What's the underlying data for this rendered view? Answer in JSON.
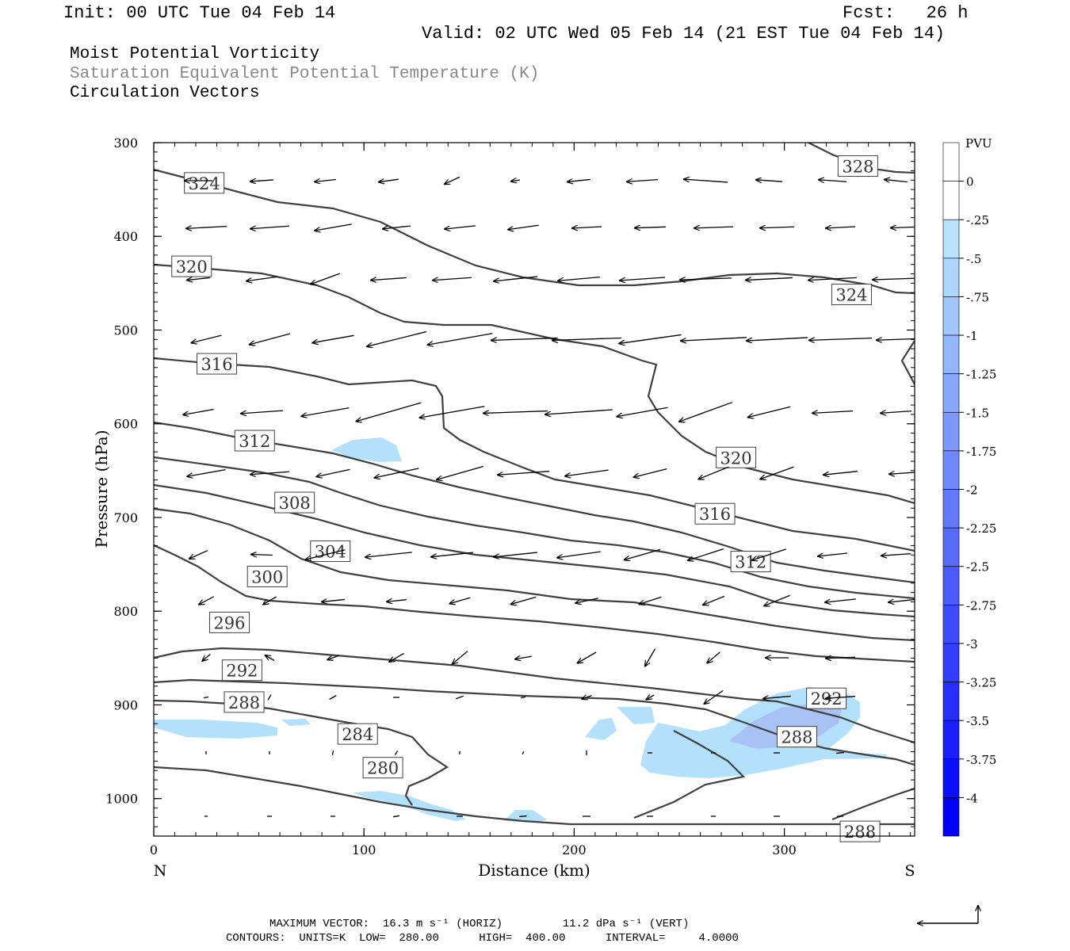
{
  "header": {
    "init": "Init: 00 UTC Tue 04 Feb 14",
    "fcst": "Fcst:   26 h",
    "valid": "Valid: 02 UTC Wed 05 Feb 14 (21 EST Tue 04 Feb 14)"
  },
  "titles": {
    "line1": "Moist Potential Vorticity",
    "line2": "Saturation Equivalent Potential Temperature (K)",
    "line3": "Circulation Vectors"
  },
  "colors": {
    "contour": "#404040",
    "mpv_light": "#b3e0fb",
    "mpv_medium": "#a8c2f5"
  },
  "chart_data": {
    "type": "contour",
    "xlabel": "Distance (km)",
    "ylabel": "Pressure (hPa)",
    "xlim": [
      0,
      362
    ],
    "ylim": [
      1040,
      300
    ],
    "x_ticks": [
      "0",
      "100",
      "200",
      "300"
    ],
    "y_ticks": [
      "300",
      "400",
      "500",
      "600",
      "700",
      "800",
      "900",
      "1000"
    ],
    "x_end_labels": {
      "left": "N",
      "right": "S"
    },
    "contour_labels": [
      {
        "v": "328",
        "x": 335,
        "p": 325
      },
      {
        "v": "324",
        "x": 24,
        "p": 343
      },
      {
        "v": "324",
        "x": 332,
        "p": 462
      },
      {
        "v": "320",
        "x": 18,
        "p": 432
      },
      {
        "v": "320",
        "x": 277,
        "p": 636
      },
      {
        "v": "316",
        "x": 30,
        "p": 536
      },
      {
        "v": "316",
        "x": 267,
        "p": 696
      },
      {
        "v": "312",
        "x": 48,
        "p": 618
      },
      {
        "v": "312",
        "x": 284,
        "p": 747
      },
      {
        "v": "308",
        "x": 67,
        "p": 684
      },
      {
        "v": "304",
        "x": 84,
        "p": 736
      },
      {
        "v": "300",
        "x": 54,
        "p": 763
      },
      {
        "v": "296",
        "x": 36,
        "p": 812
      },
      {
        "v": "292",
        "x": 42,
        "p": 863
      },
      {
        "v": "292",
        "x": 320,
        "p": 893
      },
      {
        "v": "288",
        "x": 43,
        "p": 897
      },
      {
        "v": "288",
        "x": 306,
        "p": 934
      },
      {
        "v": "288",
        "x": 336,
        "p": 1035
      },
      {
        "v": "284",
        "x": 97,
        "p": 931
      },
      {
        "v": "280",
        "x": 109,
        "p": 967
      }
    ],
    "colorbar": {
      "unit": "PVU",
      "levels": [
        "0",
        "-.25",
        "-.5",
        "-.75",
        "-1",
        "-1.25",
        "-1.5",
        "-1.75",
        "-2",
        "-2.25",
        "-2.5",
        "-2.75",
        "-3",
        "-3.25",
        "-3.5",
        "-3.75",
        "-4"
      ]
    }
  },
  "footer": {
    "max_vector": "MAXIMUM VECTOR:  16.3 m s⁻¹ (HORIZ)         11.2 dPa s⁻¹ (VERT)",
    "contours": "CONTOURS:  UNITS=K  LOW=  280.00      HIGH=  400.00      INTERVAL=     4.0000"
  }
}
